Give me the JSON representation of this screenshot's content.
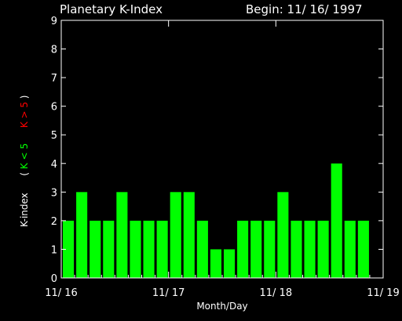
{
  "colors": {
    "background": "#000000",
    "axis": "#ffffff",
    "bar": "#00ff00",
    "green": "#00ff00",
    "red": "#ff0000"
  },
  "header": {
    "title": "Planetary K-Index",
    "begin": "Begin: 11/ 16/ 1997"
  },
  "ylabel": {
    "main": "K-index",
    "open": "(",
    "k_low": "K < 5",
    "k_high": "K > 5",
    "close": ")"
  },
  "chart_data": {
    "type": "bar",
    "title": "Planetary K-Index",
    "xlabel": "Month/Day",
    "ylabel": "K-index",
    "ylim": [
      0,
      9
    ],
    "yticks": [
      "0",
      "1",
      "2",
      "3",
      "4",
      "5",
      "6",
      "7",
      "8",
      "9"
    ],
    "xticks": [
      "11/ 16",
      "11/ 17",
      "11/ 18",
      "11/ 19"
    ],
    "x_unit": "days",
    "bar_width": 0.125,
    "series": [
      {
        "x": [
          0.0,
          0.125,
          0.25,
          0.375,
          0.5,
          0.625,
          0.75,
          0.875,
          1.0,
          1.125,
          1.25,
          1.375,
          1.5,
          1.625,
          1.75,
          1.875,
          2.0,
          2.125,
          2.25,
          2.375,
          2.5,
          2.625,
          2.75,
          2.875
        ],
        "values": [
          2,
          3,
          2,
          2,
          3,
          2,
          2,
          2,
          3,
          3,
          2,
          1,
          1,
          2,
          2,
          2,
          3,
          2,
          2,
          2,
          4,
          2,
          2,
          0
        ]
      }
    ],
    "grid": false
  }
}
